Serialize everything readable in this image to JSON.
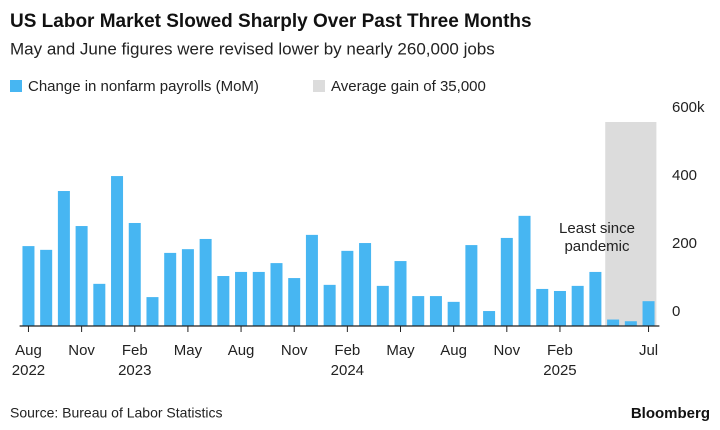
{
  "chart_data": {
    "type": "bar",
    "title": "US Labor Market Slowed Sharply Over Past Three Months",
    "subtitle": "May and June figures were revised lower by nearly 260,000 jobs",
    "series": [
      {
        "name": "Change in nonfarm payrolls (MoM)",
        "color": "#47b6f2",
        "values": [
          235,
          224,
          397,
          294,
          124,
          441,
          303,
          85,
          215,
          226,
          256,
          147,
          159,
          159,
          185,
          141,
          268,
          121,
          221,
          244,
          118,
          191,
          88,
          88,
          71,
          238,
          44,
          259,
          324,
          109,
          103,
          118,
          159,
          19,
          14,
          73
        ]
      }
    ],
    "highlight": {
      "name": "Average gain of 35,000",
      "color": "#dcdcdc"
    },
    "categories": [
      "Aug",
      null,
      null,
      "Nov",
      null,
      null,
      "Feb",
      null,
      null,
      "May",
      null,
      null,
      "Aug",
      null,
      null,
      "Nov",
      null,
      null,
      "Feb",
      null,
      null,
      "May",
      null,
      null,
      "Aug",
      null,
      null,
      "Nov",
      null,
      null,
      "Feb",
      null,
      null,
      null,
      null,
      "Jul"
    ],
    "year_labels": [
      "2022",
      null,
      null,
      null,
      null,
      null,
      "2023",
      null,
      null,
      null,
      null,
      null,
      null,
      null,
      null,
      null,
      null,
      null,
      "2024",
      null,
      null,
      null,
      null,
      null,
      null,
      null,
      null,
      null,
      null,
      null,
      "2025",
      null,
      null,
      null,
      null,
      null
    ],
    "ylim": [
      0,
      600
    ],
    "yticks": [
      0,
      200,
      400,
      {
        "value": 600,
        "label": "600k"
      }
    ],
    "annotation_lines": [
      "Least since",
      "pandemic"
    ],
    "source": "Source: Bureau of Labor Statistics",
    "brand": "Bloomberg"
  }
}
